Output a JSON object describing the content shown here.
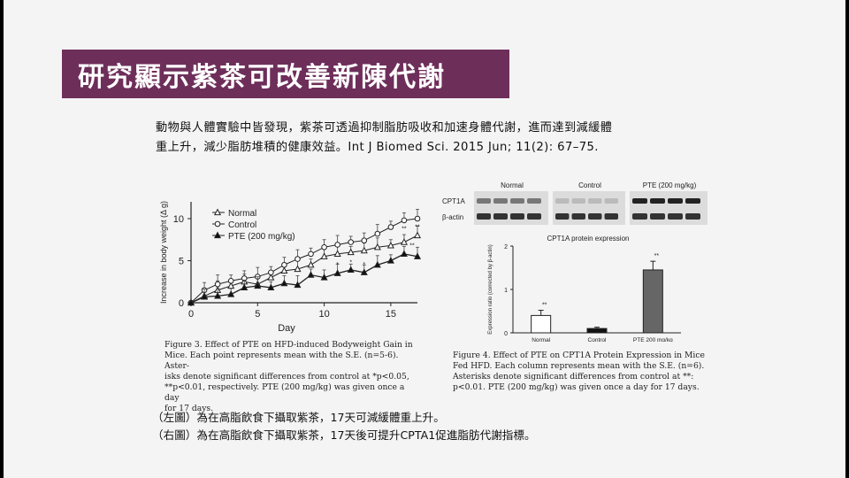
{
  "slide": {
    "title": "研究顯示紫茶可改善新陳代謝",
    "intro_line1": "動物與人體實驗中皆發現，紫茶可透過抑制脂肪吸收和加速身體代謝，進而達到減緩體",
    "intro_line2": "重上升，減少脂肪堆積的健康效益。Int J Biomed Sci. 2015 Jun; 11(2): 67–75.",
    "footnote_left": "（左圖）為在高脂飲食下攝取紫茶，17天可減緩體重上升。",
    "footnote_right": "（右圖）為在高脂飲食下攝取紫茶，17天後可提升CPTA1促進脂肪代謝指標。"
  },
  "figure3": {
    "caption_line1": "Figure 3. Effect of PTE on HFD-induced Bodyweight Gain in",
    "caption_line2": "Mice. Each point represents mean with the S.E. (n=5-6). Aster-",
    "caption_line3": "isks denote significant differences from control at *p<0.05,",
    "caption_line4": "**p<0.01, respectively. PTE (200 mg/kg) was given once a day",
    "caption_line5": "for 17 days."
  },
  "figure4": {
    "blot_headers": [
      "Normal",
      "Control",
      "PTE (200 mg/kg)"
    ],
    "blot_rows": [
      "CPT1A",
      "β-actin"
    ],
    "caption_line1": "Figure 4. Effect of PTE on CPT1A Protein Expression in Mice",
    "caption_line2": "Fed HFD. Each column represents mean with the S.E. (n=6).",
    "caption_line3": "Asterisks denote significant differences from control at **:",
    "caption_line4": "p<0.01. PTE (200 mg/kg) was given once a day for 17 days."
  },
  "chart_data": [
    {
      "type": "line",
      "title": "",
      "xlabel": "Day",
      "ylabel": "Increase in body weight (Δ g)",
      "xlim": [
        0,
        17
      ],
      "ylim": [
        0,
        12
      ],
      "xticks": [
        0,
        5,
        10,
        15
      ],
      "yticks": [
        0,
        5,
        10
      ],
      "legend_position": "top-left",
      "grid": false,
      "series": [
        {
          "name": "Normal",
          "marker": "open-triangle",
          "x": [
            0,
            1,
            2,
            3,
            4,
            5,
            6,
            7,
            8,
            9,
            10,
            11,
            12,
            13,
            14,
            15,
            16,
            17
          ],
          "y": [
            0,
            0.8,
            1.5,
            2.0,
            2.5,
            2.2,
            3.0,
            3.8,
            4.0,
            4.5,
            5.5,
            5.8,
            6.0,
            6.2,
            6.6,
            6.8,
            7.2,
            8.0
          ]
        },
        {
          "name": "Control",
          "marker": "open-circle",
          "x": [
            0,
            1,
            2,
            3,
            4,
            5,
            6,
            7,
            8,
            9,
            10,
            11,
            12,
            13,
            14,
            15,
            16,
            17
          ],
          "y": [
            0,
            1.5,
            2.2,
            2.6,
            2.9,
            3.1,
            3.6,
            4.5,
            5.2,
            5.8,
            6.6,
            6.9,
            7.2,
            7.4,
            8.2,
            9.0,
            9.8,
            10.0
          ]
        },
        {
          "name": "PTE (200 mg/kg)",
          "marker": "filled-triangle",
          "x": [
            0,
            1,
            2,
            3,
            4,
            5,
            6,
            7,
            8,
            9,
            10,
            11,
            12,
            13,
            14,
            15,
            16,
            17
          ],
          "y": [
            0,
            0.7,
            0.8,
            1.0,
            1.8,
            2.0,
            1.8,
            2.3,
            2.1,
            3.3,
            3.0,
            3.5,
            3.9,
            3.6,
            4.5,
            5.0,
            5.8,
            5.5
          ]
        }
      ],
      "annotations": [
        "**",
        "**",
        "*",
        "*",
        "*",
        "**"
      ]
    },
    {
      "type": "bar",
      "title": "CPT1A protein expression",
      "xlabel": "",
      "ylabel": "Expression ratio (corrected by β-actin)",
      "ylim": [
        0,
        2
      ],
      "yticks": [
        0,
        1,
        2
      ],
      "categories": [
        "Normal",
        "Control",
        "PTE 200 mg/kg"
      ],
      "values": [
        0.4,
        0.1,
        1.45
      ],
      "errors": [
        0.12,
        0.03,
        0.2
      ],
      "bar_colors": [
        "#ffffff",
        "#111111",
        "#666666"
      ],
      "annotations": [
        "**",
        "",
        "**"
      ]
    }
  ]
}
